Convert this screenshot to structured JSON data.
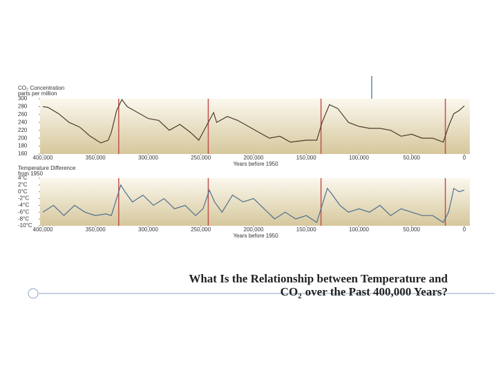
{
  "chart_data": [
    {
      "type": "line",
      "y_label_lines": [
        "CO₂ Concentration",
        "parts per million"
      ],
      "x_label": "Years before 1950",
      "x": [
        400000,
        395000,
        385000,
        375000,
        365000,
        355000,
        345000,
        338000,
        335000,
        330000,
        325000,
        320000,
        310000,
        300000,
        290000,
        280000,
        270000,
        260000,
        252000,
        245000,
        238000,
        235000,
        225000,
        215000,
        205000,
        195000,
        185000,
        175000,
        165000,
        150000,
        140000,
        135000,
        128000,
        120000,
        110000,
        100000,
        90000,
        80000,
        70000,
        60000,
        50000,
        40000,
        30000,
        20000,
        15000,
        10000,
        5000,
        0
      ],
      "values": [
        280,
        278,
        262,
        240,
        228,
        205,
        188,
        195,
        215,
        270,
        298,
        280,
        265,
        250,
        245,
        220,
        235,
        215,
        195,
        230,
        265,
        240,
        255,
        245,
        230,
        215,
        200,
        205,
        190,
        195,
        195,
        240,
        285,
        275,
        240,
        230,
        225,
        225,
        220,
        205,
        210,
        200,
        200,
        190,
        230,
        262,
        270,
        282
      ],
      "color": "#4a3b2c",
      "xlim": [
        400000,
        0
      ],
      "xticks": [
        {
          "value": 400000,
          "label": "400,000"
        },
        {
          "value": 350000,
          "label": "350,000"
        },
        {
          "value": 300000,
          "label": "300,000"
        },
        {
          "value": 250000,
          "label": "250,000"
        },
        {
          "value": 200000,
          "label": "200,000"
        },
        {
          "value": 150000,
          "label": "150,000"
        },
        {
          "value": 100000,
          "label": "100,000"
        },
        {
          "value": 50000,
          "label": "50,000"
        },
        0
      ],
      "ylim": [
        160,
        300
      ],
      "yticks": [
        160,
        180,
        200,
        220,
        240,
        260,
        280,
        300
      ],
      "markers": {
        "x": [
          328000,
          243000,
          136000,
          18000
        ],
        "color": "#c0504d"
      }
    },
    {
      "type": "line",
      "y_label_lines": [
        "Temperature Difference",
        "from 1950"
      ],
      "x_label": "Years before 1950",
      "x": [
        400000,
        395000,
        390000,
        380000,
        370000,
        360000,
        350000,
        340000,
        335000,
        330000,
        326000,
        322000,
        315000,
        305000,
        295000,
        285000,
        275000,
        265000,
        255000,
        248000,
        242000,
        237000,
        230000,
        220000,
        210000,
        200000,
        190000,
        180000,
        170000,
        160000,
        150000,
        140000,
        135000,
        130000,
        125000,
        118000,
        110000,
        100000,
        90000,
        80000,
        70000,
        60000,
        50000,
        40000,
        30000,
        20000,
        15000,
        12000,
        10000,
        5000,
        0
      ],
      "values": [
        -6,
        -5,
        -4,
        -7,
        -4,
        -6,
        -7,
        -6.5,
        -7,
        -2,
        2,
        0,
        -3,
        -1,
        -4,
        -2,
        -5,
        -4,
        -7,
        -5,
        0.5,
        -3,
        -6,
        -1,
        -3,
        -2,
        -5,
        -8,
        -6,
        -8,
        -7,
        -9,
        -4,
        1,
        -1,
        -4,
        -6,
        -5,
        -6,
        -4,
        -7,
        -5,
        -6,
        -7,
        -7,
        -9,
        -6,
        -2,
        1,
        0,
        0.5
      ],
      "color": "#4d6f8f",
      "xlim": [
        400000,
        0
      ],
      "xticks": [
        {
          "value": 400000,
          "label": "400,000"
        },
        {
          "value": 350000,
          "label": "350,000"
        },
        {
          "value": 300000,
          "label": "300,000"
        },
        {
          "value": 250000,
          "label": "250,000"
        },
        {
          "value": 200000,
          "label": "200,000"
        },
        {
          "value": 150000,
          "label": "150,000"
        },
        {
          "value": 100000,
          "label": "100,000"
        },
        {
          "value": 50000,
          "label": "50,000"
        },
        0
      ],
      "ylim": [
        -10,
        4
      ],
      "yticks": [
        {
          "value": -10,
          "label": "-10°C"
        },
        {
          "value": -8,
          "label": "-8°C"
        },
        {
          "value": -6,
          "label": "-6°C"
        },
        {
          "value": -4,
          "label": "-4°C"
        },
        {
          "value": -2,
          "label": "-2°C"
        },
        {
          "value": 0,
          "label": "0°C"
        },
        {
          "value": 2,
          "label": "2°C"
        },
        {
          "value": 4,
          "label": "4°C"
        }
      ],
      "markers": {
        "x": [
          328000,
          243000,
          136000,
          18000
        ],
        "color": "#c0504d"
      }
    }
  ],
  "slide": {
    "title": {
      "line1": "What Is the Relationship between Temperature and",
      "line2_start": "CO",
      "line2_sub": "2",
      "line2_end": "over the Past 400,000 Years?"
    }
  }
}
